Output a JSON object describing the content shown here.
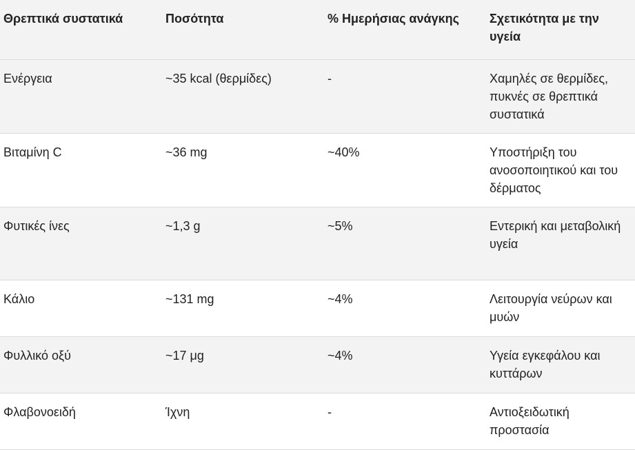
{
  "table": {
    "header": [
      "Θρεπτικά συστατικά",
      "Ποσότητα",
      "% Ημερήσιας ανάγκης",
      "Σχετικότητα με την υγεία"
    ],
    "rows": [
      [
        "Ενέργεια",
        "~35 kcal (θερμίδες)",
        "-",
        "Χαμηλές σε θερμίδες, πυκνές σε θρεπτικά συστατικά"
      ],
      [
        "Βιταμίνη C",
        "~36 mg",
        "~40%",
        "Υποστήριξη του ανοσοποιητικού και του δέρματος"
      ],
      [
        "Φυτικές ίνες",
        "~1,3 g",
        "~5%",
        "Εντερική και μεταβολική υγεία"
      ],
      [
        "Κάλιο",
        "~131 mg",
        "~4%",
        "Λειτουργία νεύρων και μυών"
      ],
      [
        "Φυλλικό οξύ",
        "~17 μg",
        "~4%",
        "Υγεία εγκεφάλου και κυττάρων"
      ],
      [
        "Φλαβονοειδή",
        "Ίχνη",
        "-",
        "Αντιοξειδωτική προστασία"
      ]
    ]
  }
}
